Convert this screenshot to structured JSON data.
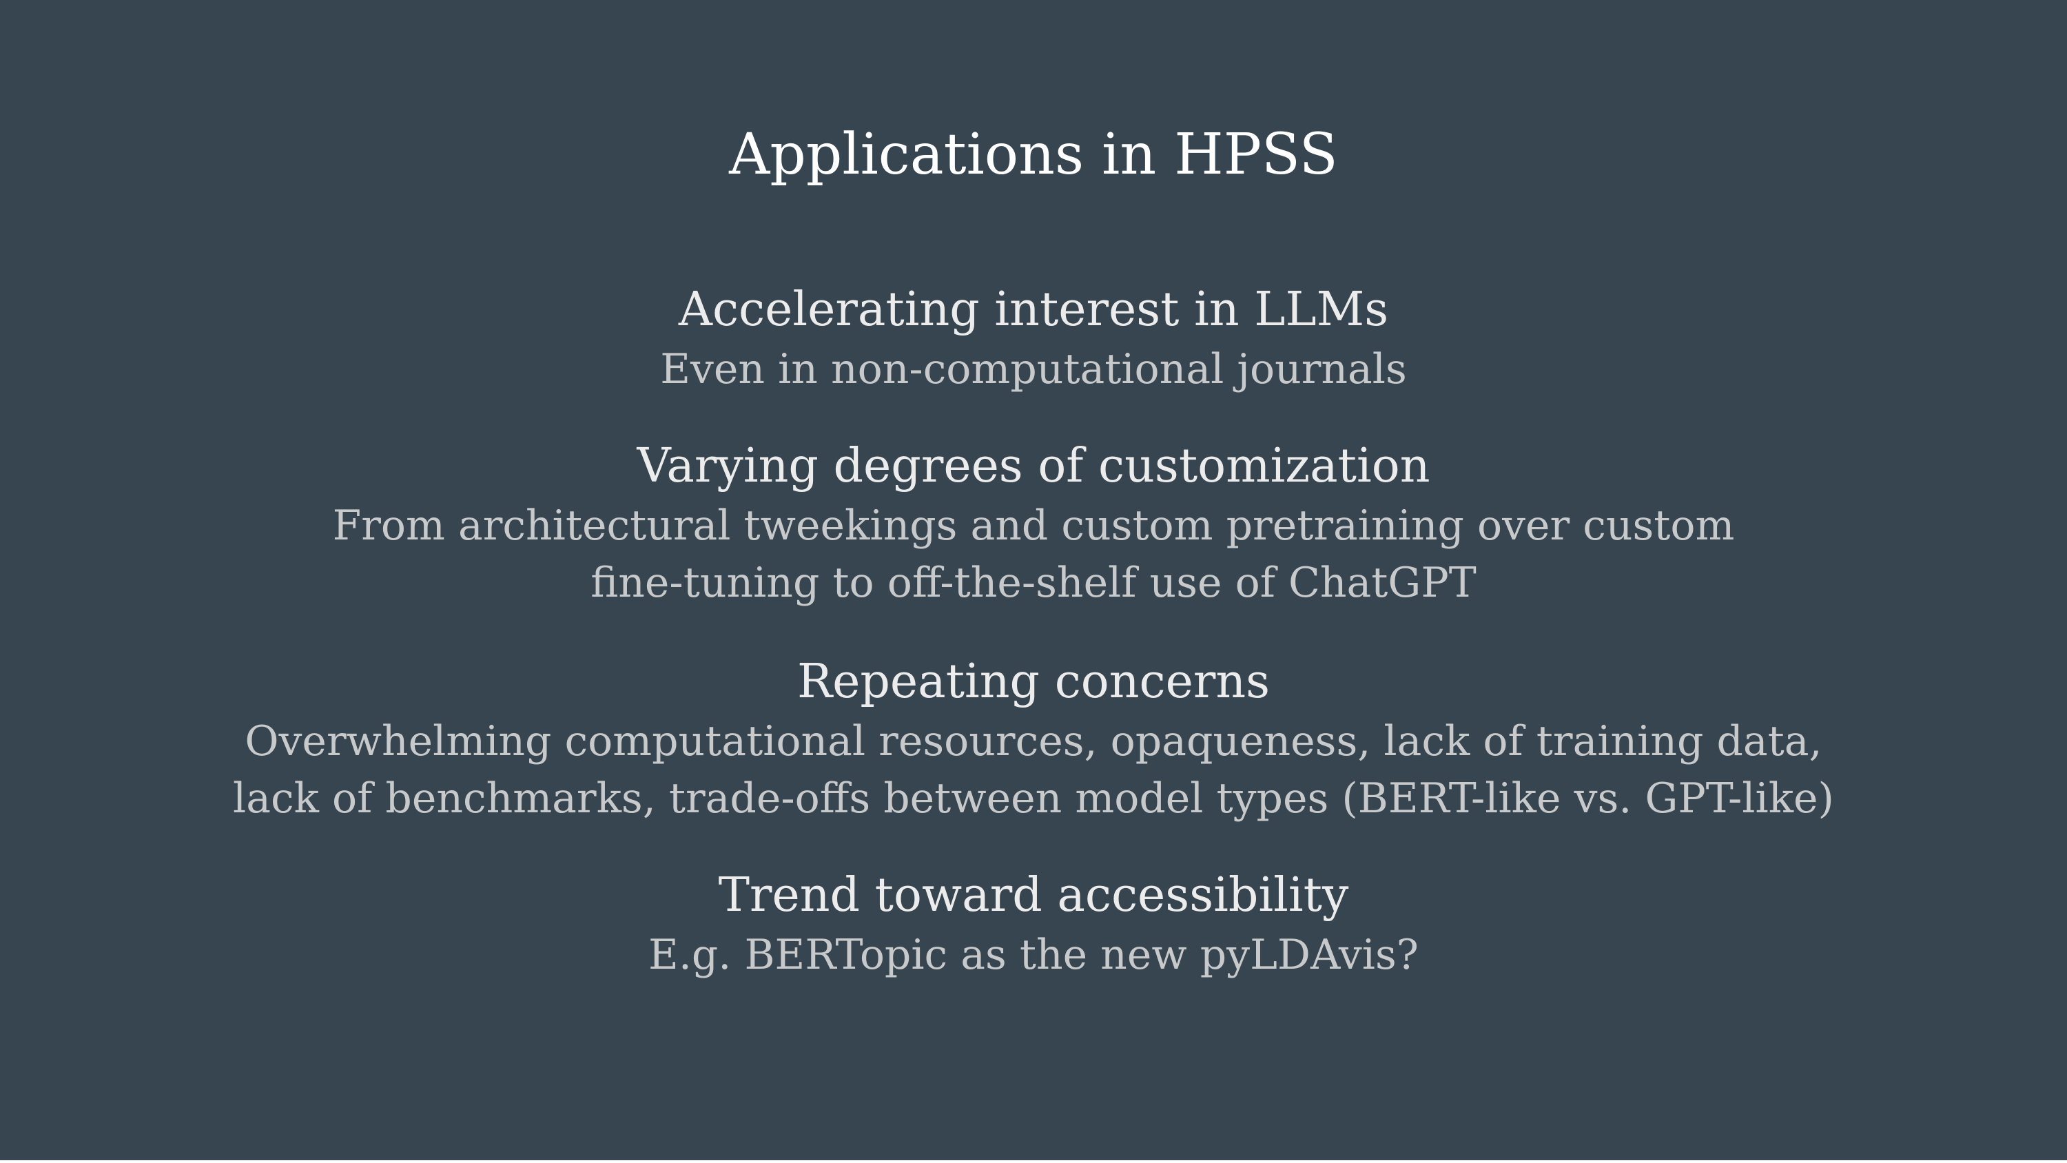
{
  "slide": {
    "title": "Applications in HPSS",
    "sections": [
      {
        "heading": "Accelerating interest in LLMs",
        "lines": [
          "Even in non-computational journals"
        ]
      },
      {
        "heading": "Varying degrees of customization",
        "lines": [
          "From architectural tweekings and custom pretraining over custom",
          "fine-tuning to off-the-shelf use of ChatGPT"
        ]
      },
      {
        "heading": "Repeating concerns",
        "lines": [
          "Overwhelming computational resources, opaqueness, lack of training data,",
          "lack of benchmarks, trade-offs between model types (BERT-like vs. GPT-like)"
        ]
      },
      {
        "heading": "Trend toward accessibility",
        "lines": [
          "E.g. BERTopic as the new pyLDAvis?"
        ]
      }
    ]
  },
  "colors": {
    "background": "#36454f",
    "title": "#ffffff",
    "heading": "#ececec",
    "body": "#c7c9ca"
  }
}
